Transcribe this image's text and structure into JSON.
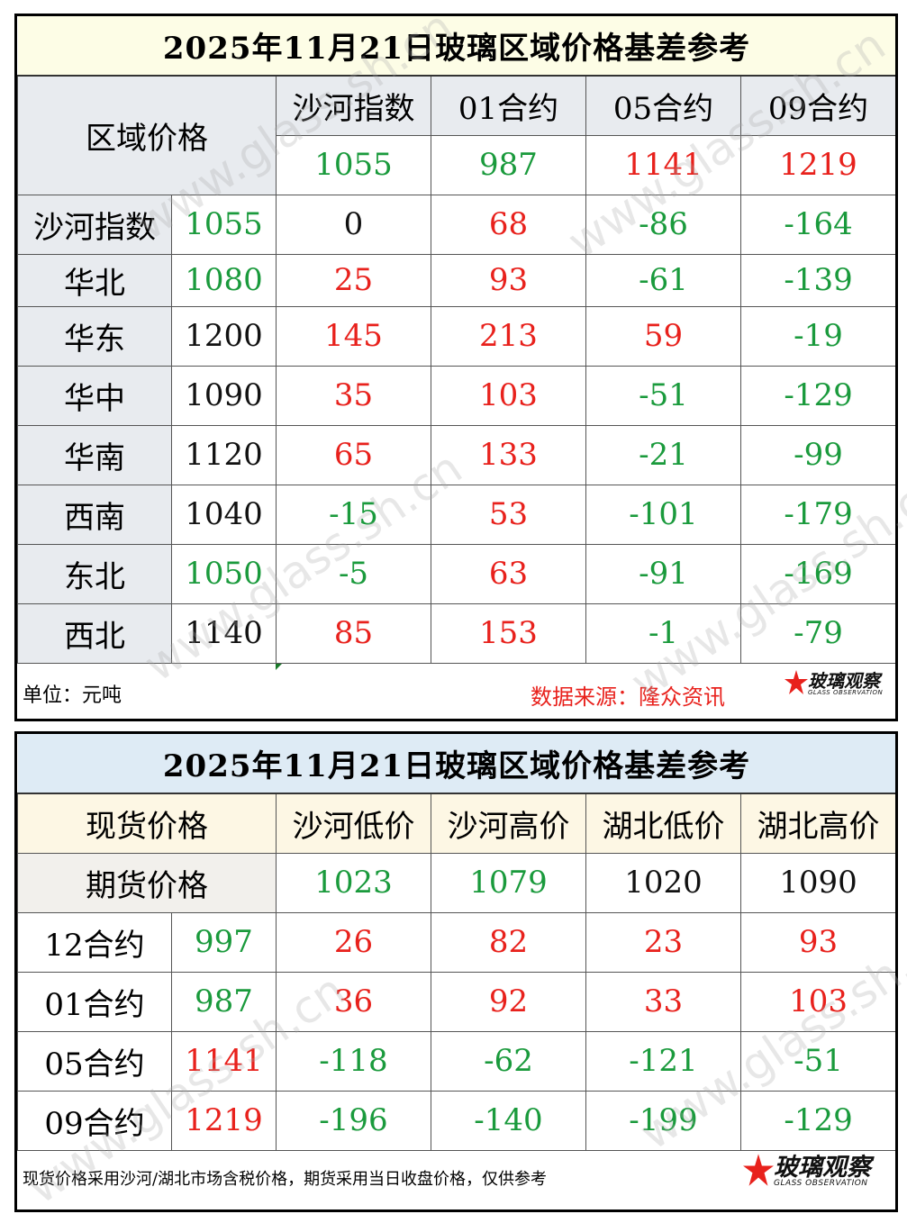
{
  "table1": {
    "title": "2025年11月21日玻璃区域价格基差参考",
    "corner_label": "区域价格",
    "columns": [
      "沙河指数",
      "01合约",
      "05合约",
      "09合约"
    ],
    "header_values": [
      {
        "text": "1055",
        "color": "green"
      },
      {
        "text": "987",
        "color": "green"
      },
      {
        "text": "1141",
        "color": "red"
      },
      {
        "text": "1219",
        "color": "red"
      }
    ],
    "rows": [
      {
        "label": "沙河指数",
        "price": {
          "text": "1055",
          "color": "green"
        },
        "cells": [
          {
            "text": "0",
            "color": "black"
          },
          {
            "text": "68",
            "color": "red"
          },
          {
            "text": "-86",
            "color": "green"
          },
          {
            "text": "-164",
            "color": "green"
          }
        ]
      },
      {
        "label": "华北",
        "price": {
          "text": "1080",
          "color": "green"
        },
        "cells": [
          {
            "text": "25",
            "color": "red"
          },
          {
            "text": "93",
            "color": "red"
          },
          {
            "text": "-61",
            "color": "green"
          },
          {
            "text": "-139",
            "color": "green"
          }
        ]
      },
      {
        "label": "华东",
        "price": {
          "text": "1200",
          "color": "black"
        },
        "cells": [
          {
            "text": "145",
            "color": "red"
          },
          {
            "text": "213",
            "color": "red"
          },
          {
            "text": "59",
            "color": "red"
          },
          {
            "text": "-19",
            "color": "green"
          }
        ]
      },
      {
        "label": "华中",
        "price": {
          "text": "1090",
          "color": "black"
        },
        "cells": [
          {
            "text": "35",
            "color": "red"
          },
          {
            "text": "103",
            "color": "red"
          },
          {
            "text": "-51",
            "color": "green"
          },
          {
            "text": "-129",
            "color": "green"
          }
        ]
      },
      {
        "label": "华南",
        "price": {
          "text": "1120",
          "color": "black"
        },
        "cells": [
          {
            "text": "65",
            "color": "red"
          },
          {
            "text": "133",
            "color": "red"
          },
          {
            "text": "-21",
            "color": "green"
          },
          {
            "text": "-99",
            "color": "green"
          }
        ]
      },
      {
        "label": "西南",
        "price": {
          "text": "1040",
          "color": "black"
        },
        "cells": [
          {
            "text": "-15",
            "color": "green"
          },
          {
            "text": "53",
            "color": "red"
          },
          {
            "text": "-101",
            "color": "green"
          },
          {
            "text": "-179",
            "color": "green"
          }
        ]
      },
      {
        "label": "东北",
        "price": {
          "text": "1050",
          "color": "green"
        },
        "cells": [
          {
            "text": "-5",
            "color": "green"
          },
          {
            "text": "63",
            "color": "red"
          },
          {
            "text": "-91",
            "color": "green"
          },
          {
            "text": "-169",
            "color": "green"
          }
        ]
      },
      {
        "label": "西北",
        "price": {
          "text": "1140",
          "color": "black"
        },
        "cells": [
          {
            "text": "85",
            "color": "red"
          },
          {
            "text": "153",
            "color": "red"
          },
          {
            "text": "-1",
            "color": "green"
          },
          {
            "text": "-79",
            "color": "green"
          }
        ]
      }
    ],
    "unit": "单位：元吨",
    "source": "数据来源：隆众资讯"
  },
  "table2": {
    "title": "2025年11月21日玻璃区域价格基差参考",
    "spot_label": "现货价格",
    "futures_label": "期货价格",
    "columns": [
      "沙河低价",
      "沙河高价",
      "湖北低价",
      "湖北高价"
    ],
    "spot_values": [
      {
        "text": "1023",
        "color": "green"
      },
      {
        "text": "1079",
        "color": "green"
      },
      {
        "text": "1020",
        "color": "black"
      },
      {
        "text": "1090",
        "color": "black"
      }
    ],
    "rows": [
      {
        "label": "12合约",
        "price": {
          "text": "997",
          "color": "green"
        },
        "cells": [
          {
            "text": "26",
            "color": "red"
          },
          {
            "text": "82",
            "color": "red"
          },
          {
            "text": "23",
            "color": "red"
          },
          {
            "text": "93",
            "color": "red"
          }
        ]
      },
      {
        "label": "01合约",
        "price": {
          "text": "987",
          "color": "green"
        },
        "cells": [
          {
            "text": "36",
            "color": "red"
          },
          {
            "text": "92",
            "color": "red"
          },
          {
            "text": "33",
            "color": "red"
          },
          {
            "text": "103",
            "color": "red"
          }
        ]
      },
      {
        "label": "05合约",
        "price": {
          "text": "1141",
          "color": "red"
        },
        "cells": [
          {
            "text": "-118",
            "color": "green"
          },
          {
            "text": "-62",
            "color": "green"
          },
          {
            "text": "-121",
            "color": "green"
          },
          {
            "text": "-51",
            "color": "green"
          }
        ]
      },
      {
        "label": "09合约",
        "price": {
          "text": "1219",
          "color": "red"
        },
        "cells": [
          {
            "text": "-196",
            "color": "green"
          },
          {
            "text": "-140",
            "color": "green"
          },
          {
            "text": "-199",
            "color": "green"
          },
          {
            "text": "-129",
            "color": "green"
          }
        ]
      }
    ],
    "note": "现货价格采用沙河/湖北市场含税价格，期货采用当日收盘价格，仅供参考"
  },
  "logo": {
    "cn": "玻璃观察",
    "en": "GLASS OBSERVATION"
  },
  "watermark": "www.glass.sh.cn",
  "colors": {
    "red": "#e8211c",
    "green": "#1a9a3c",
    "black": "#111111"
  }
}
